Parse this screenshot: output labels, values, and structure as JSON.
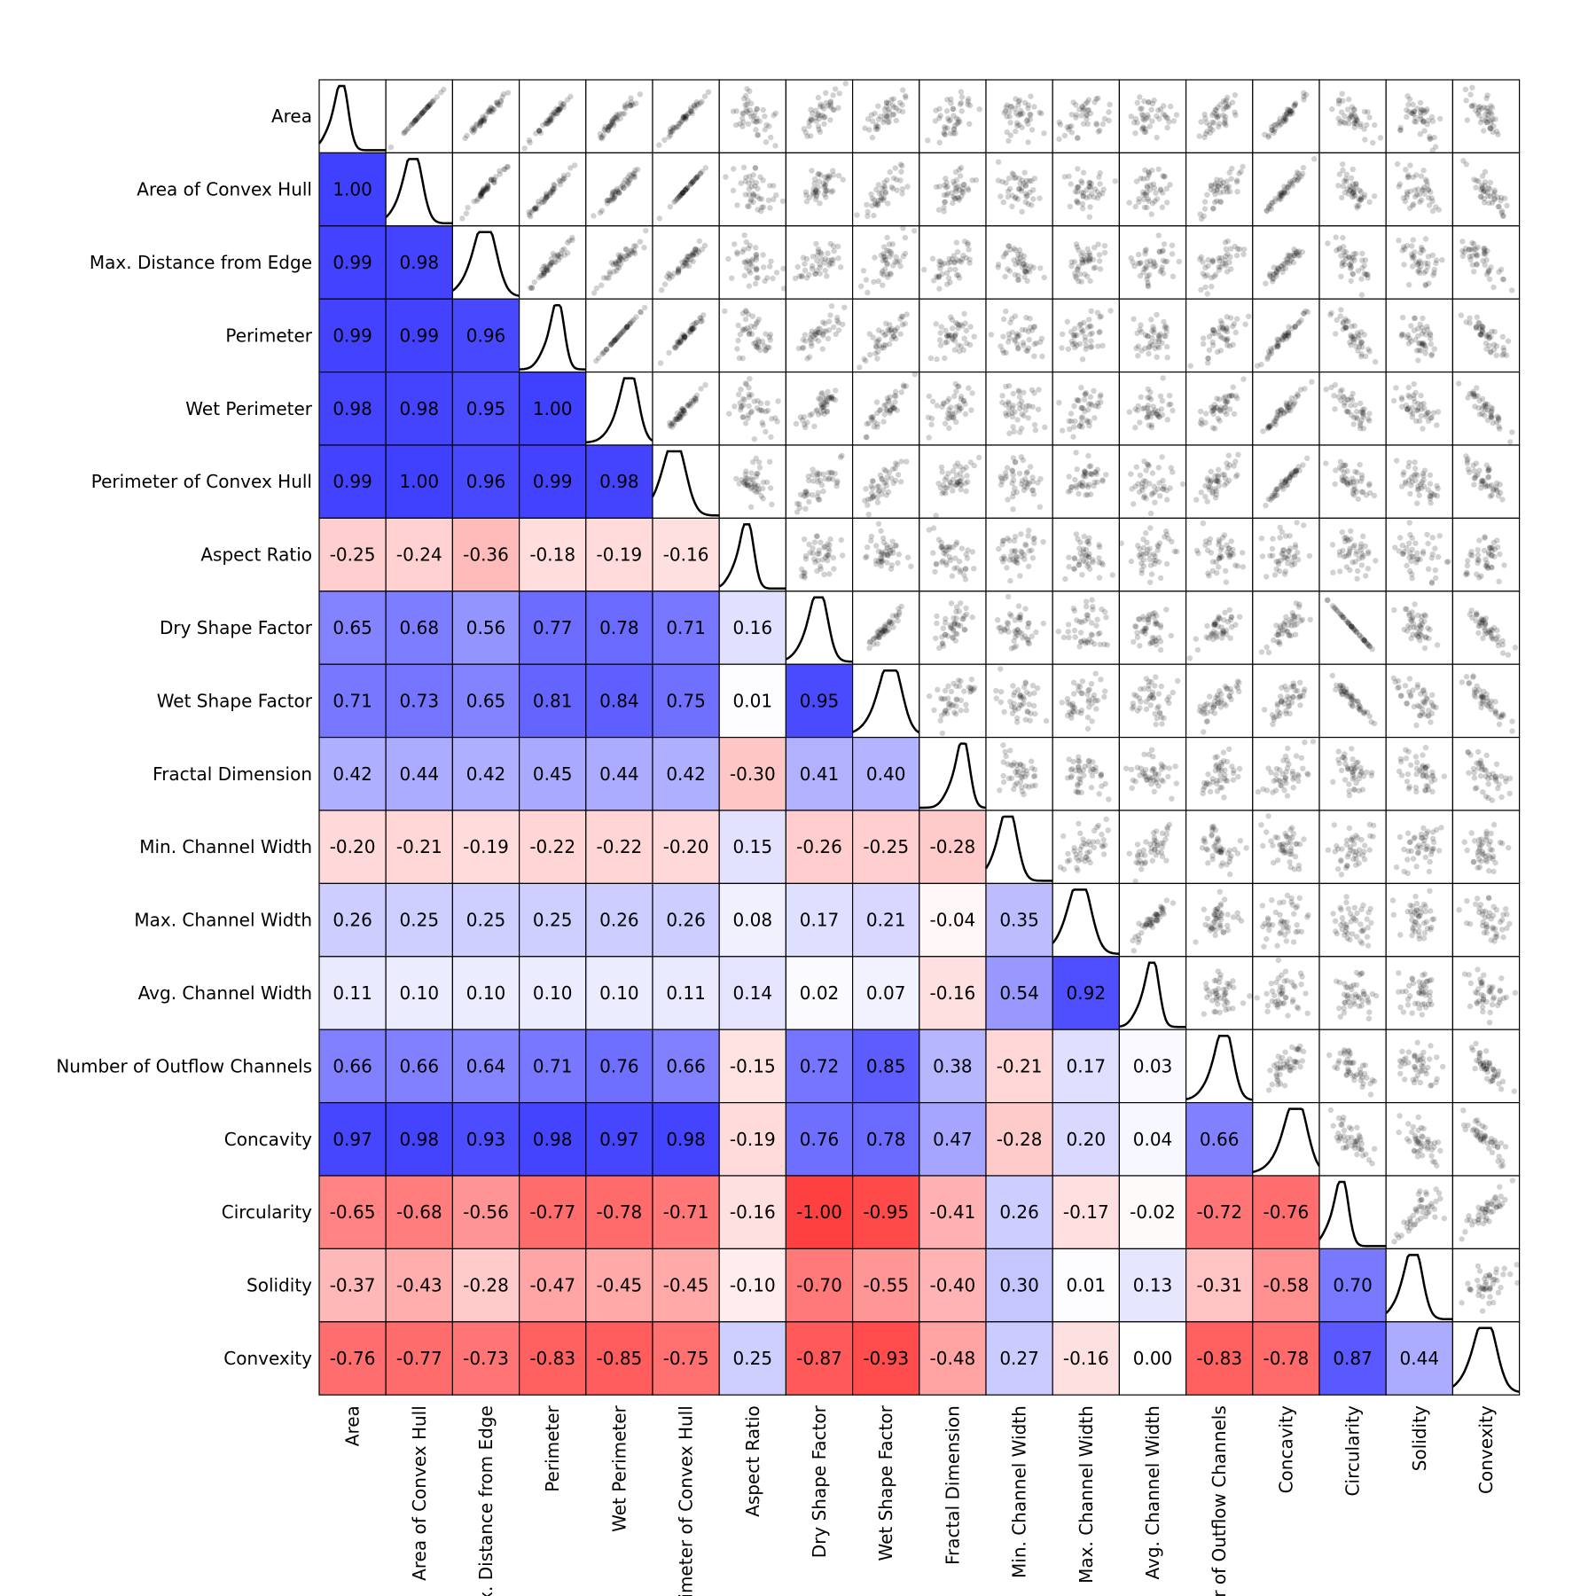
{
  "chart_data": {
    "type": "heatmap",
    "title": "",
    "variables": [
      "Area",
      "Area of Convex Hull",
      "Max. Distance from Edge",
      "Perimeter",
      "Wet Perimeter",
      "Perimeter of Convex Hull",
      "Aspect Ratio",
      "Dry Shape Factor",
      "Wet Shape Factor",
      "Fractal Dimension",
      "Min. Channel Width",
      "Max. Channel Width",
      "Avg. Channel Width",
      "Number of Outflow Channels",
      "Concavity",
      "Circularity",
      "Solidity",
      "Convexity"
    ],
    "lower_triangle_correlations": [
      [],
      [
        "1.00"
      ],
      [
        "0.99",
        "0.98"
      ],
      [
        "0.99",
        "0.99",
        "0.96"
      ],
      [
        "0.98",
        "0.98",
        "0.95",
        "1.00"
      ],
      [
        "0.99",
        "1.00",
        "0.96",
        "0.99",
        "0.98"
      ],
      [
        "-0.25",
        "-0.24",
        "-0.36",
        "-0.18",
        "-0.19",
        "-0.16"
      ],
      [
        "0.65",
        "0.68",
        "0.56",
        "0.77",
        "0.78",
        "0.71",
        "0.16"
      ],
      [
        "0.71",
        "0.73",
        "0.65",
        "0.81",
        "0.84",
        "0.75",
        "0.01",
        "0.95"
      ],
      [
        "0.42",
        "0.44",
        "0.42",
        "0.45",
        "0.44",
        "0.42",
        "-0.30",
        "0.41",
        "0.40"
      ],
      [
        "-0.20",
        "-0.21",
        "-0.19",
        "-0.22",
        "-0.22",
        "-0.20",
        "0.15",
        "-0.26",
        "-0.25",
        "-0.28"
      ],
      [
        "0.26",
        "0.25",
        "0.25",
        "0.25",
        "0.26",
        "0.26",
        "0.08",
        "0.17",
        "0.21",
        "-0.04",
        "0.35"
      ],
      [
        "0.11",
        "0.10",
        "0.10",
        "0.10",
        "0.10",
        "0.11",
        "0.14",
        "0.02",
        "0.07",
        "-0.16",
        "0.54",
        "0.92"
      ],
      [
        "0.66",
        "0.66",
        "0.64",
        "0.71",
        "0.76",
        "0.66",
        "-0.15",
        "0.72",
        "0.85",
        "0.38",
        "-0.21",
        "0.17",
        "0.03"
      ],
      [
        "0.97",
        "0.98",
        "0.93",
        "0.98",
        "0.97",
        "0.98",
        "-0.19",
        "0.76",
        "0.78",
        "0.47",
        "-0.28",
        "0.20",
        "0.04",
        "0.66"
      ],
      [
        "-0.65",
        "-0.68",
        "-0.56",
        "-0.77",
        "-0.78",
        "-0.71",
        "-0.16",
        "-1.00",
        "-0.95",
        "-0.41",
        "0.26",
        "-0.17",
        "-0.02",
        "-0.72",
        "-0.76"
      ],
      [
        "-0.37",
        "-0.43",
        "-0.28",
        "-0.47",
        "-0.45",
        "-0.45",
        "-0.10",
        "-0.70",
        "-0.55",
        "-0.40",
        "0.30",
        "0.01",
        "0.13",
        "-0.31",
        "-0.58",
        "0.70"
      ],
      [
        "-0.76",
        "-0.77",
        "-0.73",
        "-0.83",
        "-0.85",
        "-0.75",
        "0.25",
        "-0.87",
        "-0.93",
        "-0.48",
        "0.27",
        "-0.16",
        "0.00",
        "-0.83",
        "-0.78",
        "0.87",
        "0.44"
      ]
    ],
    "diagonal": "kernel density curve of each variable",
    "upper_triangle": "pairwise scatter plots (semi-transparent black points)",
    "color_scale": {
      "negative": "#ff4040",
      "zero": "#ffffff",
      "positive": "#4040ff"
    },
    "grid": true,
    "legend": "none"
  }
}
